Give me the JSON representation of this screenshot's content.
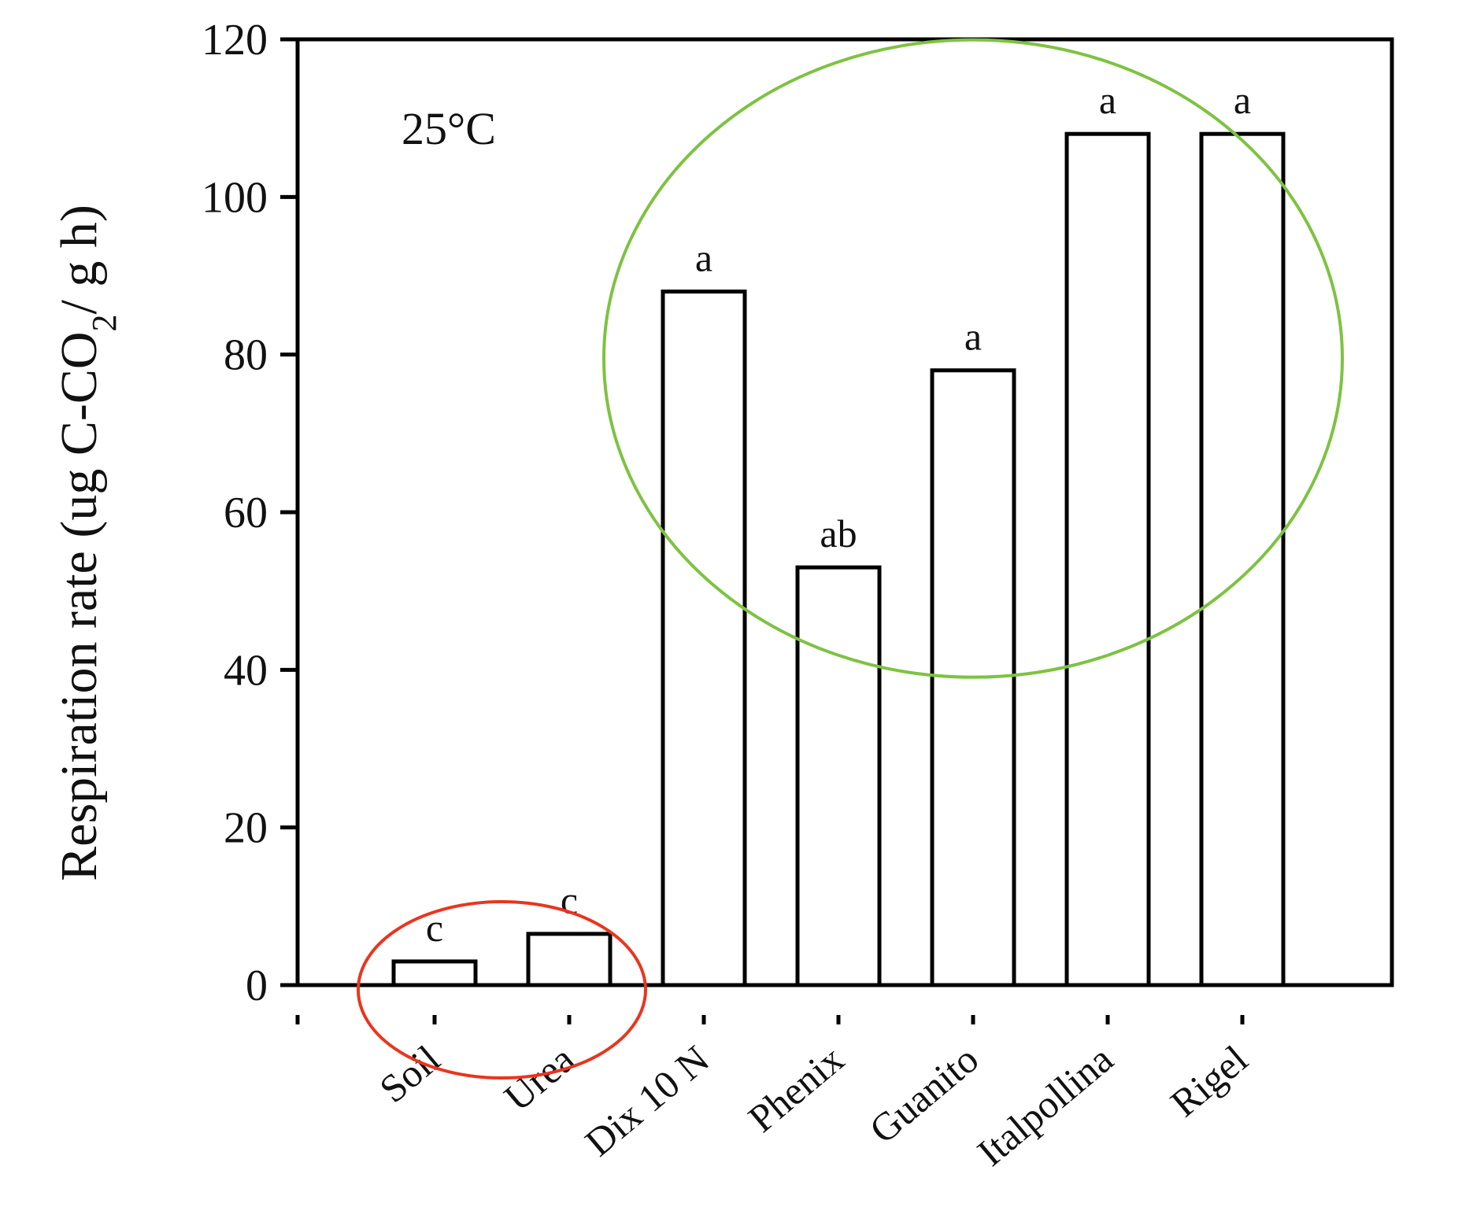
{
  "chart_data": {
    "type": "bar",
    "title": "",
    "xlabel": "",
    "ylabel": "Respiration rate (ug C-CO₂/ g h)",
    "categories": [
      "Soil",
      "Urea",
      "Dix 10 N",
      "Phenix",
      "Guanito",
      "Italpollina",
      "Rigel"
    ],
    "values": [
      3,
      6.5,
      88,
      53,
      78,
      108,
      108
    ],
    "significance_letters": [
      "c",
      "c",
      "a",
      "ab",
      "a",
      "a",
      "a"
    ],
    "ylim": [
      0,
      120
    ],
    "yticks": [
      0,
      20,
      40,
      60,
      80,
      100,
      120
    ],
    "annotation": "25°C",
    "grid": false,
    "bar_fill": "#ffffff",
    "bar_stroke": "#000000",
    "highlights": [
      {
        "name": "low-respiration-group",
        "color": "#e8361f",
        "categories": [
          "Soil",
          "Urea"
        ]
      },
      {
        "name": "high-respiration-group",
        "color": "#7ec242",
        "categories": [
          "Dix 10 N",
          "Phenix",
          "Guanito",
          "Italpollina",
          "Rigel"
        ]
      }
    ]
  }
}
